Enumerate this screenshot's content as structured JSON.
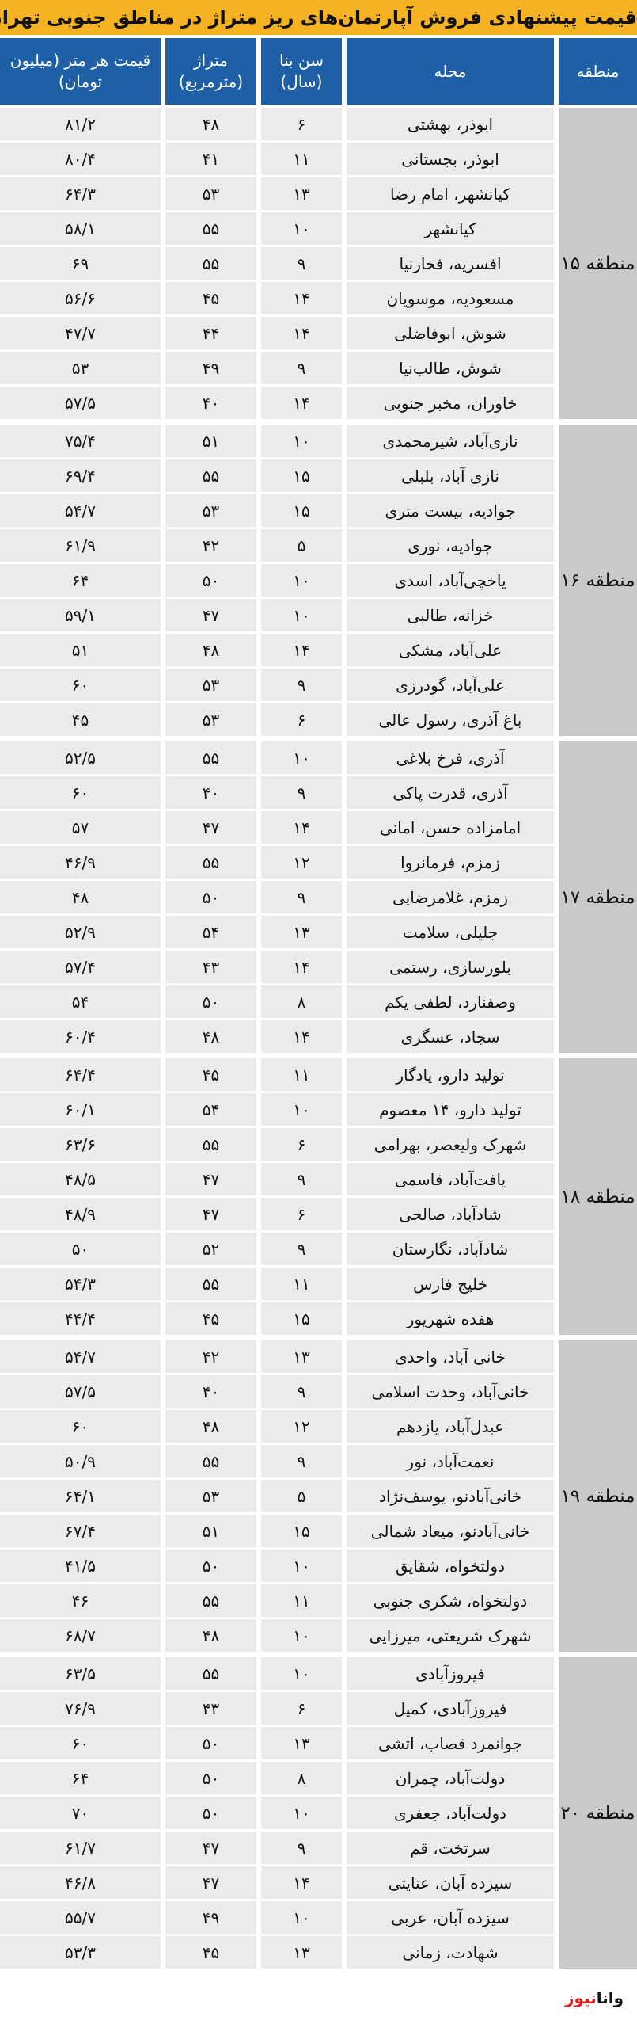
{
  "title": "قیمت پیشنهادی فروش آپارتمان‌های ریز متراژ در مناطق جنوبی تهران",
  "headers": {
    "zone": "منطقه",
    "neighborhood": "محله",
    "age": "سن بنا (سال)",
    "area": "متراژ (مترمربع)",
    "price": "قیمت هر متر (میلیون تومان)"
  },
  "colors": {
    "title_bg": "#f5b324",
    "header_bg": "#1f5fa6",
    "cell_bg": "#ebebeb",
    "zone_bg": "#c9c9c9"
  },
  "logo": {
    "part1": "وانا",
    "part2": "نیوز"
  },
  "zones": [
    {
      "label": "منطقه ۱۵",
      "rows": [
        [
          "ابوذر، بهشتی",
          "۶",
          "۴۸",
          "۸۱/۲"
        ],
        [
          "ابوذر، بجستانی",
          "۱۱",
          "۴۱",
          "۸۰/۴"
        ],
        [
          "کیانشهر، امام رضا",
          "۱۳",
          "۵۳",
          "۶۴/۳"
        ],
        [
          "کیانشهر",
          "۱۰",
          "۵۵",
          "۵۸/۱"
        ],
        [
          "افسریه، فخارنیا",
          "۹",
          "۵۵",
          "۶۹"
        ],
        [
          "مسعودیه، موسویان",
          "۱۴",
          "۴۵",
          "۵۶/۶"
        ],
        [
          "شوش، ابوفاضلی",
          "۱۴",
          "۴۴",
          "۴۷/۷"
        ],
        [
          "شوش، طالب‌نیا",
          "۹",
          "۴۹",
          "۵۳"
        ],
        [
          "خاوران، مخبر جنوبی",
          "۱۴",
          "۴۰",
          "۵۷/۵"
        ]
      ]
    },
    {
      "label": "منطقه ۱۶",
      "rows": [
        [
          "نازی‌آباد، شیرمحمدی",
          "۱۰",
          "۵۱",
          "۷۵/۴"
        ],
        [
          "نازی آباد، بلبلی",
          "۱۵",
          "۵۵",
          "۶۹/۴"
        ],
        [
          "جوادیه، بیست متری",
          "۱۵",
          "۵۳",
          "۵۴/۷"
        ],
        [
          "جوادیه، نوری",
          "۵",
          "۴۲",
          "۶۱/۹"
        ],
        [
          "یاخچی‌آباد، اسدی",
          "۱۰",
          "۵۰",
          "۶۴"
        ],
        [
          "خزانه، طالبی",
          "۱۰",
          "۴۷",
          "۵۹/۱"
        ],
        [
          "علی‌آباد، مشکی",
          "۱۴",
          "۴۸",
          "۵۱"
        ],
        [
          "علی‌آباد، گودرزی",
          "۹",
          "۵۳",
          "۶۰"
        ],
        [
          "باغ آذری، رسول عالی",
          "۶",
          "۵۳",
          "۴۵"
        ]
      ]
    },
    {
      "label": "منطقه ۱۷",
      "rows": [
        [
          "آذری، فرخ بلاغی",
          "۱۰",
          "۵۵",
          "۵۲/۵"
        ],
        [
          "آذری، قدرت پاکی",
          "۹",
          "۴۰",
          "۶۰"
        ],
        [
          "امامزاده حسن، امانی",
          "۱۴",
          "۴۷",
          "۵۷"
        ],
        [
          "زمزم، فرمانروا",
          "۱۲",
          "۵۵",
          "۴۶/۹"
        ],
        [
          "زمزم، غلامرضایی",
          "۹",
          "۵۰",
          "۴۸"
        ],
        [
          "جلیلی، سلامت",
          "۱۳",
          "۵۴",
          "۵۲/۹"
        ],
        [
          "بلورسازی، رستمی",
          "۱۴",
          "۴۳",
          "۵۷/۴"
        ],
        [
          "وصفنارد، لطفی یکم",
          "۸",
          "۵۰",
          "۵۴"
        ],
        [
          "سجاد، عسگری",
          "۱۴",
          "۴۸",
          "۶۰/۴"
        ]
      ]
    },
    {
      "label": "منطقه ۱۸",
      "rows": [
        [
          "تولید دارو، یادگار",
          "۱۱",
          "۴۵",
          "۶۴/۴"
        ],
        [
          "تولید دارو، ۱۴ معصوم",
          "۱۰",
          "۵۴",
          "۶۰/۱"
        ],
        [
          "شهرک ولیعصر، بهرامی",
          "۶",
          "۵۵",
          "۶۳/۶"
        ],
        [
          "یافت‌آباد، قاسمی",
          "۹",
          "۴۷",
          "۴۸/۵"
        ],
        [
          "شادآباد، صالحی",
          "۶",
          "۴۷",
          "۴۸/۹"
        ],
        [
          "شادآباد، نگارستان",
          "۹",
          "۵۲",
          "۵۰"
        ],
        [
          "خلیج فارس",
          "۱۱",
          "۵۵",
          "۵۴/۳"
        ],
        [
          "هفده شهریور",
          "۱۵",
          "۴۵",
          "۴۴/۴"
        ]
      ]
    },
    {
      "label": "منطقه ۱۹",
      "rows": [
        [
          "خانی آباد، واحدی",
          "۱۳",
          "۴۲",
          "۵۴/۷"
        ],
        [
          "خانی‌آباد، وحدت اسلامی",
          "۹",
          "۴۰",
          "۵۷/۵"
        ],
        [
          "عبدل‌آباد، یازدهم",
          "۱۲",
          "۴۸",
          "۶۰"
        ],
        [
          "نعمت‌آباد، نور",
          "۹",
          "۵۵",
          "۵۰/۹"
        ],
        [
          "خانی‌آبادنو، یوسف‌نژاد",
          "۵",
          "۵۳",
          "۶۴/۱"
        ],
        [
          "خانی‌آبادنو، میعاد شمالی",
          "۱۵",
          "۵۱",
          "۶۷/۴"
        ],
        [
          "دولتخواه، شقایق",
          "۱۰",
          "۵۰",
          "۴۱/۵"
        ],
        [
          "دولتخواه، شکری جنوبی",
          "۱۱",
          "۵۵",
          "۴۶"
        ],
        [
          "شهرک شریعتی، میرزایی",
          "۱۰",
          "۴۸",
          "۶۸/۷"
        ]
      ]
    },
    {
      "label": "منطقه ۲۰",
      "rows": [
        [
          "فیروزآبادی",
          "۱۰",
          "۵۵",
          "۶۳/۵"
        ],
        [
          "فیروزآبادی، کمیل",
          "۶",
          "۴۳",
          "۷۶/۹"
        ],
        [
          "جوانمرد قصاب، اتشی",
          "۱۳",
          "۵۰",
          "۶۰"
        ],
        [
          "دولت‌آباد، چمران",
          "۸",
          "۵۰",
          "۶۴"
        ],
        [
          "دولت‌آباد، جعفری",
          "۱۰",
          "۵۰",
          "۷۰"
        ],
        [
          "سرتخت، قم",
          "۹",
          "۴۷",
          "۶۱/۷"
        ],
        [
          "سیزده آبان، عنایتی",
          "۱۴",
          "۴۷",
          "۴۶/۸"
        ],
        [
          "سیزده آبان، عربی",
          "۱۰",
          "۴۹",
          "۵۵/۷"
        ],
        [
          "شهادت، زمانی",
          "۱۳",
          "۴۵",
          "۵۳/۳"
        ]
      ]
    }
  ]
}
